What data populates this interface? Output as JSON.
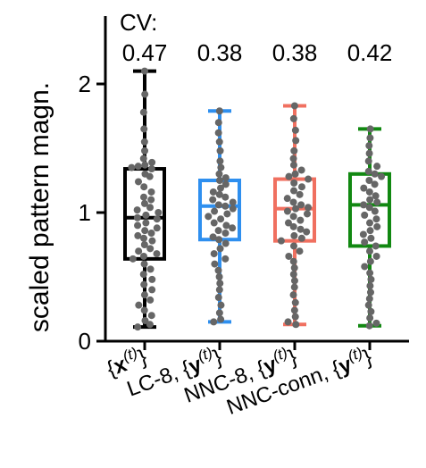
{
  "chart_data": {
    "type": "box",
    "ylabel": "scaled pattern magn.",
    "ylim": [
      0,
      2.5
    ],
    "yticks": [
      "0",
      "1",
      "2"
    ],
    "cv_header": "CV:",
    "grid": false,
    "categories": [
      {
        "pre": "{",
        "bold": "x",
        "sup": "(t)",
        "post": "}"
      },
      {
        "pre": "LC-8, {",
        "bold": "y",
        "sup": "(t)",
        "post": "}"
      },
      {
        "pre": "NNC-8, {",
        "bold": "y",
        "sup": "(t)",
        "post": "}"
      },
      {
        "pre": "NNC-conn, {",
        "bold": "y",
        "sup": "(t)",
        "post": "}"
      }
    ],
    "series": [
      {
        "cv": "0.47",
        "color": "#000000",
        "min": 0.11,
        "q1": 0.64,
        "median": 0.96,
        "q3": 1.34,
        "max": 2.1,
        "points": [
          2.1,
          1.92,
          1.78,
          1.65,
          1.55,
          1.48,
          1.42,
          1.39,
          1.37,
          1.36,
          1.35,
          1.34,
          1.3,
          1.28,
          1.24,
          1.2,
          1.16,
          1.12,
          1.1,
          1.07,
          1.04,
          1.02,
          1.0,
          0.98,
          0.96,
          0.95,
          0.92,
          0.9,
          0.88,
          0.86,
          0.84,
          0.82,
          0.8,
          0.78,
          0.75,
          0.72,
          0.7,
          0.68,
          0.66,
          0.64,
          0.6,
          0.56,
          0.52,
          0.48,
          0.44,
          0.4,
          0.36,
          0.32,
          0.28,
          0.24,
          0.2,
          0.16,
          0.13,
          0.11
        ]
      },
      {
        "cv": "0.38",
        "color": "#2E8FEF",
        "min": 0.15,
        "q1": 0.79,
        "median": 1.05,
        "q3": 1.25,
        "max": 1.79,
        "points": [
          1.79,
          1.7,
          1.62,
          1.55,
          1.48,
          1.4,
          1.35,
          1.3,
          1.27,
          1.25,
          1.22,
          1.19,
          1.16,
          1.14,
          1.12,
          1.1,
          1.08,
          1.06,
          1.05,
          1.03,
          1.01,
          0.99,
          0.97,
          0.95,
          0.92,
          0.9,
          0.88,
          0.86,
          0.84,
          0.81,
          0.79,
          0.76,
          0.72,
          0.68,
          0.64,
          0.6,
          0.55,
          0.5,
          0.45,
          0.4,
          0.34,
          0.28,
          0.22,
          0.17,
          0.15
        ]
      },
      {
        "cv": "0.38",
        "color": "#F07060",
        "min": 0.13,
        "q1": 0.78,
        "median": 1.03,
        "q3": 1.26,
        "max": 1.83,
        "points": [
          1.83,
          1.73,
          1.64,
          1.56,
          1.48,
          1.42,
          1.37,
          1.33,
          1.3,
          1.28,
          1.26,
          1.23,
          1.2,
          1.17,
          1.14,
          1.11,
          1.08,
          1.06,
          1.04,
          1.03,
          1.01,
          0.99,
          0.97,
          0.94,
          0.92,
          0.89,
          0.87,
          0.85,
          0.82,
          0.8,
          0.78,
          0.74,
          0.7,
          0.66,
          0.62,
          0.57,
          0.52,
          0.47,
          0.42,
          0.36,
          0.3,
          0.24,
          0.19,
          0.15,
          0.13
        ]
      },
      {
        "cv": "0.42",
        "color": "#118811",
        "min": 0.12,
        "q1": 0.74,
        "median": 1.06,
        "q3": 1.3,
        "max": 1.65,
        "points": [
          1.65,
          1.58,
          1.52,
          1.46,
          1.4,
          1.36,
          1.32,
          1.3,
          1.28,
          1.25,
          1.22,
          1.19,
          1.16,
          1.13,
          1.1,
          1.08,
          1.06,
          1.04,
          1.01,
          0.98,
          0.95,
          0.92,
          0.89,
          0.86,
          0.83,
          0.8,
          0.77,
          0.74,
          0.7,
          0.66,
          0.62,
          0.58,
          0.53,
          0.48,
          0.43,
          0.38,
          0.33,
          0.28,
          0.23,
          0.18,
          0.14,
          0.12
        ]
      }
    ]
  }
}
